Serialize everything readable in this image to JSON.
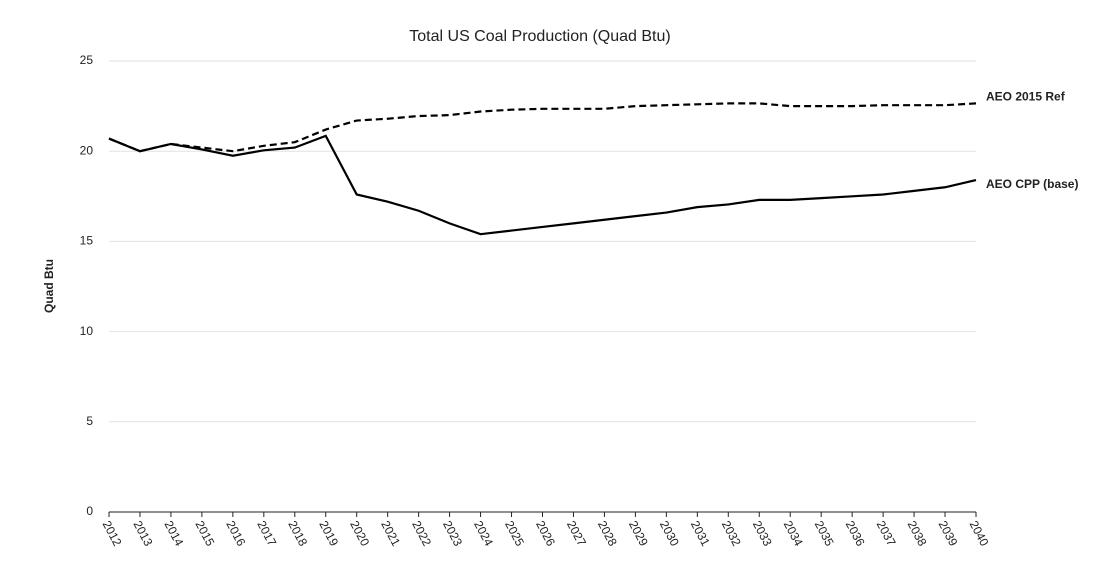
{
  "chart_data": {
    "type": "line",
    "title": "Total US Coal Production (Quad Btu)",
    "ylabel": "Quad Btu",
    "categories": [
      "2012",
      "2013",
      "2014",
      "2015",
      "2016",
      "2017",
      "2018",
      "2019",
      "2020",
      "2021",
      "2022",
      "2023",
      "2024",
      "2025",
      "2026",
      "2027",
      "2028",
      "2029",
      "2030",
      "2031",
      "2032",
      "2033",
      "2034",
      "2035",
      "2036",
      "2037",
      "2038",
      "2039",
      "2040"
    ],
    "series": [
      {
        "name": "AEO 2015 Ref",
        "color": "#000000",
        "dashed": true,
        "values": [
          20.7,
          20.0,
          20.4,
          20.2,
          20.0,
          20.3,
          20.5,
          21.2,
          21.7,
          21.8,
          21.95,
          22.0,
          22.2,
          22.3,
          22.35,
          22.35,
          22.35,
          22.5,
          22.55,
          22.6,
          22.65,
          22.65,
          22.5,
          22.5,
          22.5,
          22.55,
          22.55,
          22.55,
          22.65
        ]
      },
      {
        "name": "AEO CPP (base)",
        "color": "#000000",
        "dashed": false,
        "values": [
          20.7,
          20.0,
          20.4,
          20.1,
          19.75,
          20.05,
          20.2,
          20.85,
          17.6,
          17.2,
          16.7,
          16.0,
          15.4,
          15.6,
          15.8,
          16.0,
          16.2,
          16.4,
          16.6,
          16.9,
          17.05,
          17.3,
          17.3,
          17.4,
          17.5,
          17.6,
          17.8,
          18.0,
          18.4
        ]
      }
    ],
    "ylim": [
      0,
      25
    ],
    "yticks": [
      0,
      5,
      10,
      15,
      20,
      25
    ],
    "grid": true
  }
}
